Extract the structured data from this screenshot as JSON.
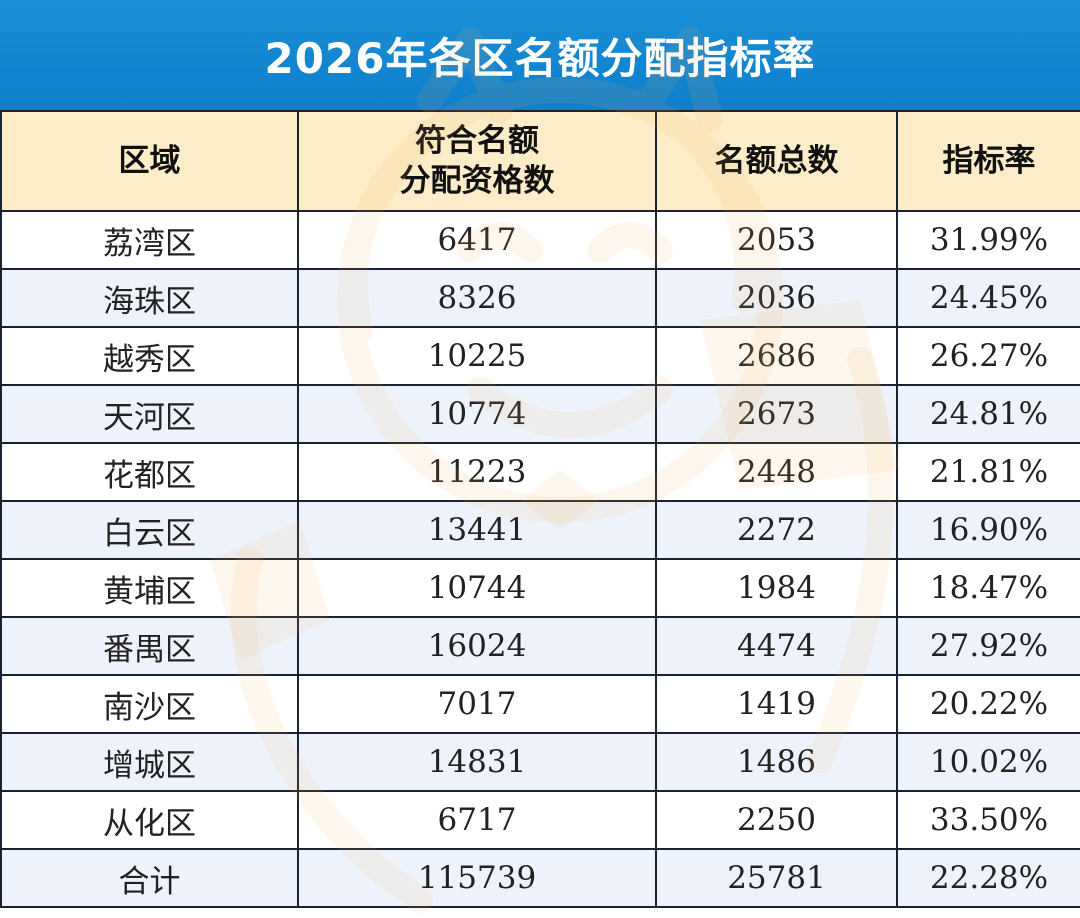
{
  "title": "2026年各区名额分配指标率",
  "columns": {
    "district": "区域",
    "eligible_line1": "符合名额",
    "eligible_line2": "分配资格数",
    "quota": "名额总数",
    "rate": "指标率"
  },
  "rows": [
    {
      "district": "荔湾区",
      "eligible": "6417",
      "quota": "2053",
      "rate": "31.99%"
    },
    {
      "district": "海珠区",
      "eligible": "8326",
      "quota": "2036",
      "rate": "24.45%"
    },
    {
      "district": "越秀区",
      "eligible": "10225",
      "quota": "2686",
      "rate": "26.27%"
    },
    {
      "district": "天河区",
      "eligible": "10774",
      "quota": "2673",
      "rate": "24.81%"
    },
    {
      "district": "花都区",
      "eligible": "11223",
      "quota": "2448",
      "rate": "21.81%"
    },
    {
      "district": "白云区",
      "eligible": "13441",
      "quota": "2272",
      "rate": "16.90%"
    },
    {
      "district": "黄埔区",
      "eligible": "10744",
      "quota": "1984",
      "rate": "18.47%"
    },
    {
      "district": "番禺区",
      "eligible": "16024",
      "quota": "4474",
      "rate": "27.92%"
    },
    {
      "district": "南沙区",
      "eligible": "7017",
      "quota": "1419",
      "rate": "20.22%"
    },
    {
      "district": "增城区",
      "eligible": "14831",
      "quota": "1486",
      "rate": "10.02%"
    },
    {
      "district": "从化区",
      "eligible": "6717",
      "quota": "2250",
      "rate": "33.50%"
    },
    {
      "district": "合计",
      "eligible": "115739",
      "quota": "25781",
      "rate": "22.28%"
    }
  ],
  "colors": {
    "title_bg": "#1a8fd6",
    "header_bg": "#fcecc7",
    "stripe_bg": "#eef3fb",
    "grid": "#1b2230",
    "watermark": "#f4b35a"
  }
}
